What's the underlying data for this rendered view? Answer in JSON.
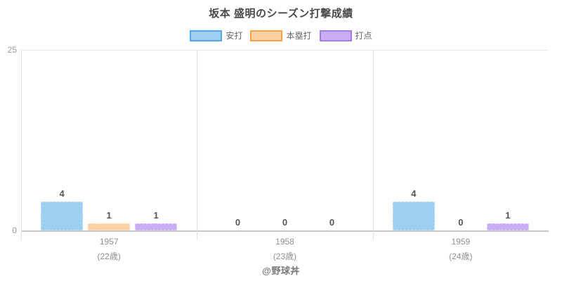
{
  "page": {
    "footer": "@野球丼"
  },
  "chart_data": {
    "type": "bar",
    "title": "坂本 盛明のシーズン打撃成績",
    "categories": [
      "1957",
      "1958",
      "1959"
    ],
    "category_sublabels": [
      "(22歳)",
      "(23歳)",
      "(24歳)"
    ],
    "series": [
      {
        "key": "hits",
        "name": "安打",
        "values": [
          4,
          0,
          4
        ],
        "fill": "#9DCFF3",
        "stroke": "#54A8EA",
        "bar_border": "#C6E3F8"
      },
      {
        "key": "home-runs",
        "name": "本塁打",
        "values": [
          1,
          0,
          0
        ],
        "fill": "#FBD0A2",
        "stroke": "#F9A14D",
        "bar_border": "#FDE4C8"
      },
      {
        "key": "rbi",
        "name": "打点",
        "values": [
          1,
          0,
          1
        ],
        "fill": "#CAADF5",
        "stroke": "#A27BEF",
        "bar_border": "#E2D3FA"
      }
    ],
    "ylim": [
      0,
      25
    ],
    "yticks": [
      "0",
      "25"
    ],
    "legend_position": "top",
    "grid": "top gridline + vertical group separators",
    "value_labels": "shown above each bar"
  }
}
